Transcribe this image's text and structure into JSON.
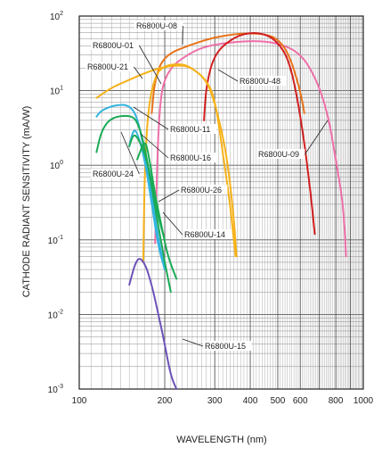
{
  "chart_data": {
    "type": "line",
    "title": "",
    "xlabel": "WAVELENGTH (nm)",
    "ylabel": "CATHODE RADIANT SENSITIVITY (mA/W)",
    "x_scale": "log",
    "y_scale": "log",
    "xlim": [
      100,
      1000
    ],
    "ylim": [
      0.001,
      100
    ],
    "grid": true,
    "x_ticks": [
      {
        "value": 100,
        "label": "100"
      },
      {
        "value": 200,
        "label": "200"
      },
      {
        "value": 300,
        "label": "300"
      },
      {
        "value": 400,
        "label": "400"
      },
      {
        "value": 500,
        "label": "500"
      },
      {
        "value": 600,
        "label": "600"
      },
      {
        "value": 800,
        "label": "800"
      },
      {
        "value": 1000,
        "label": "1000"
      }
    ],
    "y_ticks": [
      {
        "value": 100,
        "base": "10",
        "exp": "2"
      },
      {
        "value": 10,
        "base": "10",
        "exp": "1"
      },
      {
        "value": 1,
        "base": "10",
        "exp": "0"
      },
      {
        "value": 0.1,
        "base": "10",
        "exp": "-1"
      },
      {
        "value": 0.01,
        "base": "10",
        "exp": "-2"
      },
      {
        "value": 0.001,
        "base": "10",
        "exp": "-3"
      }
    ],
    "series": [
      {
        "name": "R6800U-09",
        "color": "#ee6fa8",
        "points": [
          [
            185,
            0.09
          ],
          [
            190,
            4.5
          ],
          [
            200,
            18
          ],
          [
            250,
            34
          ],
          [
            300,
            42
          ],
          [
            400,
            47
          ],
          [
            500,
            44
          ],
          [
            600,
            32
          ],
          [
            680,
            15
          ],
          [
            750,
            5
          ],
          [
            800,
            1.2
          ],
          [
            850,
            0.3
          ],
          [
            870,
            0.06
          ]
        ]
      },
      {
        "name": "R6800U-08",
        "color": "#e8731a",
        "points": [
          [
            180,
            5
          ],
          [
            185,
            15
          ],
          [
            200,
            30
          ],
          [
            250,
            42
          ],
          [
            300,
            52
          ],
          [
            350,
            57
          ],
          [
            400,
            59
          ],
          [
            450,
            57
          ],
          [
            500,
            50
          ],
          [
            550,
            30
          ],
          [
            600,
            10
          ],
          [
            620,
            5
          ]
        ]
      },
      {
        "name": "R6800U-48",
        "color": "#d11f1f",
        "points": [
          [
            275,
            4
          ],
          [
            280,
            12
          ],
          [
            300,
            32
          ],
          [
            350,
            52
          ],
          [
            400,
            60
          ],
          [
            450,
            58
          ],
          [
            500,
            45
          ],
          [
            550,
            25
          ],
          [
            600,
            5
          ],
          [
            650,
            0.5
          ],
          [
            675,
            0.12
          ]
        ]
      },
      {
        "name": "R6800U-21",
        "color": "#f6b21a",
        "points": [
          [
            115,
            8
          ],
          [
            130,
            11
          ],
          [
            150,
            14
          ],
          [
            175,
            18
          ],
          [
            200,
            21
          ],
          [
            230,
            22
          ],
          [
            250,
            20
          ],
          [
            280,
            14
          ],
          [
            300,
            8
          ],
          [
            320,
            1.5
          ],
          [
            340,
            0.3
          ],
          [
            355,
            0.06
          ]
        ]
      },
      {
        "name": "R6800U-01",
        "color": "#f6b21a",
        "points": [
          [
            168,
            0.05
          ],
          [
            170,
            0.9
          ],
          [
            175,
            6
          ],
          [
            185,
            16
          ],
          [
            200,
            22
          ],
          [
            230,
            23
          ],
          [
            250,
            20
          ],
          [
            280,
            14
          ],
          [
            300,
            7
          ],
          [
            330,
            1.5
          ],
          [
            350,
            0.2
          ],
          [
            358,
            0.06
          ]
        ]
      },
      {
        "name": "R6800U-11",
        "color": "#33b4e0",
        "points": [
          [
            115,
            4.5
          ],
          [
            120,
            5.5
          ],
          [
            135,
            6.5
          ],
          [
            150,
            6.4
          ],
          [
            160,
            4.5
          ],
          [
            170,
            1.5
          ],
          [
            180,
            0.4
          ],
          [
            190,
            0.1
          ],
          [
            200,
            0.04
          ]
        ]
      },
      {
        "name": "R6800U-16",
        "color": "#33b4e0",
        "points": [
          [
            150,
            1.8
          ],
          [
            155,
            3
          ],
          [
            160,
            2.8
          ],
          [
            170,
            1.2
          ],
          [
            180,
            0.3
          ],
          [
            190,
            0.08
          ],
          [
            200,
            0.04
          ]
        ]
      },
      {
        "name": "R6800U-24",
        "color": "#1aaa55",
        "points": [
          [
            115,
            1.5
          ],
          [
            120,
            3
          ],
          [
            130,
            4.4
          ],
          [
            150,
            4.7
          ],
          [
            160,
            4
          ],
          [
            170,
            1.8
          ],
          [
            180,
            0.5
          ],
          [
            190,
            0.15
          ],
          [
            200,
            0.05
          ],
          [
            210,
            0.02
          ]
        ]
      },
      {
        "name": "R6800U-26",
        "color": "#1aaa55",
        "points": [
          [
            150,
            1.8
          ],
          [
            155,
            2.6
          ],
          [
            160,
            2.4
          ],
          [
            170,
            1.5
          ],
          [
            180,
            0.6
          ],
          [
            190,
            0.2
          ],
          [
            200,
            0.1
          ]
        ]
      },
      {
        "name": "R6800U-14",
        "color": "#1aaa55",
        "points": [
          [
            160,
            1.2
          ],
          [
            170,
            2.2
          ],
          [
            175,
            1.5
          ],
          [
            185,
            0.4
          ],
          [
            195,
            0.15
          ],
          [
            205,
            0.06
          ],
          [
            220,
            0.03
          ]
        ]
      },
      {
        "name": "R6800U-15",
        "color": "#6d52b8",
        "points": [
          [
            150,
            0.025
          ],
          [
            160,
            0.06
          ],
          [
            170,
            0.05
          ],
          [
            180,
            0.025
          ],
          [
            190,
            0.01
          ],
          [
            200,
            0.004
          ],
          [
            210,
            0.0015
          ],
          [
            220,
            0.001
          ]
        ]
      }
    ],
    "annotations": [
      {
        "text": "R6800U-08",
        "series": "R6800U-08"
      },
      {
        "text": "R6800U-01",
        "series": "R6800U-01"
      },
      {
        "text": "R6800U-21",
        "series": "R6800U-21"
      },
      {
        "text": "R6800U-48",
        "series": "R6800U-48"
      },
      {
        "text": "R6800U-11",
        "series": "R6800U-11"
      },
      {
        "text": "R6800U-16",
        "series": "R6800U-16"
      },
      {
        "text": "R6800U-09",
        "series": "R6800U-09"
      },
      {
        "text": "R6800U-24",
        "series": "R6800U-24"
      },
      {
        "text": "R6800U-26",
        "series": "R6800U-26"
      },
      {
        "text": "R6800U-14",
        "series": "R6800U-14"
      },
      {
        "text": "R6800U-15",
        "series": "R6800U-15"
      }
    ]
  }
}
